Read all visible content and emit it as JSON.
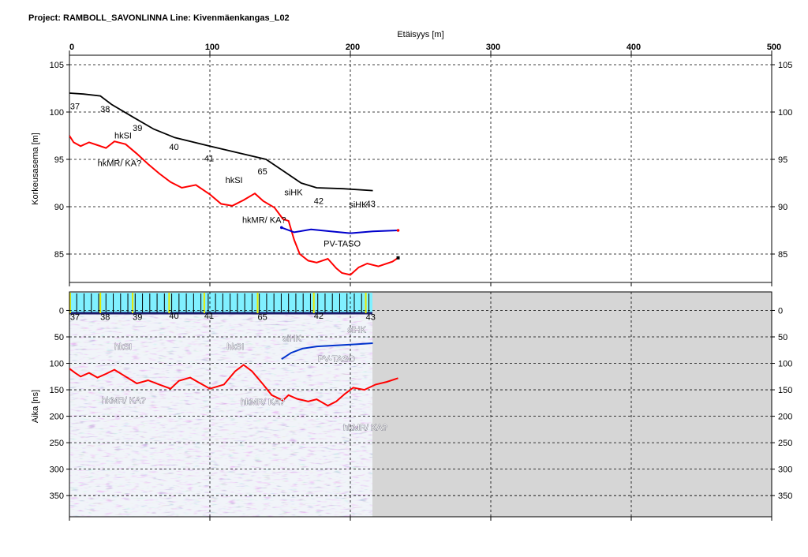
{
  "header": {
    "title": "Project: RAMBOLL_SAVONLINNA  Line: Kivenmäenkangas_L02"
  },
  "chart_data": [
    {
      "type": "line",
      "title": "",
      "xlabel": "Etäisyys [m]",
      "ylabel": "Korkeusasema [m]",
      "xlim": [
        0,
        500
      ],
      "ylim": [
        82,
        106
      ],
      "xticks": [
        "0",
        "100",
        "200",
        "300",
        "400",
        "500"
      ],
      "yticks": [
        "105",
        "100",
        "95",
        "90",
        "85"
      ],
      "grid": true,
      "series": [
        {
          "color": "#000000",
          "points": [
            [
              0,
              102
            ],
            [
              10,
              101.9
            ],
            [
              22,
              101.7
            ],
            [
              30,
              100.8
            ],
            [
              46,
              99.4
            ],
            [
              60,
              98.2
            ],
            [
              75,
              97.3
            ],
            [
              100,
              96.4
            ],
            [
              120,
              95.7
            ],
            [
              140,
              95
            ],
            [
              152,
              93.8
            ],
            [
              165,
              92.5
            ],
            [
              176,
              92
            ],
            [
              195,
              91.9
            ],
            [
              216,
              91.7
            ]
          ]
        },
        {
          "color": "#ff0000",
          "points": [
            [
              0,
              97.5
            ],
            [
              3,
              96.8
            ],
            [
              8,
              96.4
            ],
            [
              14,
              96.8
            ],
            [
              20,
              96.5
            ],
            [
              26,
              96.2
            ],
            [
              32,
              96.9
            ],
            [
              40,
              96.6
            ],
            [
              48,
              95.6
            ],
            [
              56,
              94.5
            ],
            [
              64,
              93.5
            ],
            [
              72,
              92.6
            ],
            [
              80,
              92
            ],
            [
              90,
              92.3
            ],
            [
              100,
              91.3
            ],
            [
              108,
              90.3
            ],
            [
              116,
              90.1
            ],
            [
              124,
              90.7
            ],
            [
              132,
              91.4
            ],
            [
              138,
              90.6
            ],
            [
              146,
              89.9
            ],
            [
              152,
              88.7
            ],
            [
              156,
              88.5
            ],
            [
              160,
              86.5
            ],
            [
              164,
              85
            ],
            [
              170,
              84.3
            ],
            [
              176,
              84.1
            ],
            [
              184,
              84.5
            ],
            [
              190,
              83.5
            ],
            [
              194,
              83
            ],
            [
              200,
              82.8
            ],
            [
              206,
              83.6
            ],
            [
              212,
              84
            ],
            [
              220,
              83.7
            ],
            [
              230,
              84.2
            ],
            [
              234,
              84.6
            ]
          ]
        },
        {
          "color": "#0000cc",
          "points": [
            [
              151,
              87.8
            ],
            [
              160,
              87.3
            ],
            [
              172,
              87.6
            ],
            [
              186,
              87.4
            ],
            [
              200,
              87.2
            ],
            [
              216,
              87.4
            ],
            [
              234,
              87.5
            ]
          ]
        }
      ],
      "point_labels": [
        {
          "text": "37",
          "x": 0.5,
          "y": 101.3
        },
        {
          "text": "38",
          "x": 22,
          "y": 101.0
        },
        {
          "text": "39",
          "x": 45,
          "y": 99.0
        },
        {
          "text": "40",
          "x": 71,
          "y": 97.0
        },
        {
          "text": "41",
          "x": 96,
          "y": 95.8
        },
        {
          "text": "65",
          "x": 134,
          "y": 94.4
        },
        {
          "text": "42",
          "x": 174,
          "y": 91.3
        },
        {
          "text": "43",
          "x": 211,
          "y": 91.0
        }
      ],
      "annotations": [
        {
          "text": "hkSI",
          "x": 32,
          "y": 97.2
        },
        {
          "text": "hkMR/ KA?",
          "x": 20,
          "y": 94.3
        },
        {
          "text": "hkSI",
          "x": 111,
          "y": 92.5
        },
        {
          "text": "siHK",
          "x": 153,
          "y": 91.2
        },
        {
          "text": "siHK",
          "x": 199,
          "y": 89.9
        },
        {
          "text": "hkMR/ KA?",
          "x": 123,
          "y": 88.3
        },
        {
          "text": "PV-TASO",
          "x": 181,
          "y": 85.8
        }
      ]
    },
    {
      "type": "heatmap",
      "title": "",
      "xlabel": "",
      "ylabel": "Aika [ns]",
      "xlim": [
        0,
        500
      ],
      "ylim": [
        390,
        -35
      ],
      "data_extent_x": [
        0,
        216
      ],
      "yticks": [
        "0",
        "50",
        "100",
        "150",
        "200",
        "250",
        "300",
        "350"
      ],
      "grid": true,
      "series": [
        {
          "color": "#ff0000",
          "points": [
            [
              0,
              110
            ],
            [
              4,
              118
            ],
            [
              8,
              125
            ],
            [
              14,
              118
            ],
            [
              20,
              127
            ],
            [
              26,
              120
            ],
            [
              32,
              112
            ],
            [
              40,
              125
            ],
            [
              48,
              138
            ],
            [
              56,
              132
            ],
            [
              64,
              140
            ],
            [
              72,
              148
            ],
            [
              78,
              133
            ],
            [
              86,
              127
            ],
            [
              92,
              136
            ],
            [
              100,
              148
            ],
            [
              110,
              140
            ],
            [
              118,
              115
            ],
            [
              124,
              103
            ],
            [
              130,
              115
            ],
            [
              138,
              140
            ],
            [
              144,
              160
            ],
            [
              152,
              170
            ],
            [
              156,
              160
            ],
            [
              162,
              167
            ],
            [
              170,
              172
            ],
            [
              176,
              168
            ],
            [
              184,
              180
            ],
            [
              190,
              172
            ],
            [
              196,
              158
            ],
            [
              202,
              146
            ],
            [
              210,
              150
            ],
            [
              218,
              140
            ],
            [
              226,
              135
            ],
            [
              234,
              128
            ]
          ]
        },
        {
          "color": "#0033cc",
          "points": [
            [
              151,
              92
            ],
            [
              158,
              80
            ],
            [
              166,
              72
            ],
            [
              176,
              68
            ],
            [
              190,
              66
            ],
            [
              204,
              64
            ],
            [
              216,
              62
            ]
          ]
        }
      ],
      "point_labels": [
        {
          "text": "37",
          "x": 0.5,
          "y": 18
        },
        {
          "text": "38",
          "x": 22,
          "y": 18
        },
        {
          "text": "39",
          "x": 45,
          "y": 18
        },
        {
          "text": "40",
          "x": 71,
          "y": 16
        },
        {
          "text": "41",
          "x": 96,
          "y": 16
        },
        {
          "text": "65",
          "x": 134,
          "y": 18
        },
        {
          "text": "42",
          "x": 174,
          "y": 16
        },
        {
          "text": "43",
          "x": 211,
          "y": 18
        }
      ],
      "annotations": [
        {
          "text": "hkSI",
          "x": 32,
          "y": 74
        },
        {
          "text": "hkSI",
          "x": 112,
          "y": 74
        },
        {
          "text": "siHK",
          "x": 152,
          "y": 58
        },
        {
          "text": "siHK",
          "x": 198,
          "y": 42
        },
        {
          "text": "PV-TASO",
          "x": 177,
          "y": 97
        },
        {
          "text": "hkMR/ KA?",
          "x": 23,
          "y": 175
        },
        {
          "text": "hkMR/ KA?",
          "x": 122,
          "y": 178
        },
        {
          "text": "hkMR/ KA?",
          "x": 195,
          "y": 227
        }
      ]
    }
  ]
}
